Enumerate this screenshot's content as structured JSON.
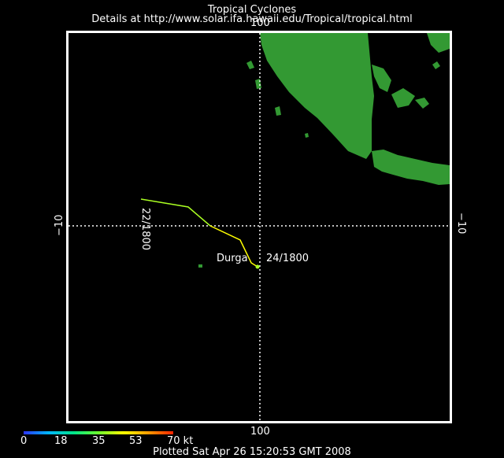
{
  "header": {
    "title": "Tropical Cyclones",
    "details": "Details at http://www.solar.ifa.hawaii.edu/Tropical/tropical.html"
  },
  "axes": {
    "top_longitude_label": "100",
    "bottom_longitude_label": "100",
    "left_latitude_label": "−10",
    "right_latitude_label": "−10",
    "grid": "dotted"
  },
  "storm": {
    "name": "Durga",
    "start_label": "22/1800",
    "end_label": "24/1800",
    "track_colors": [
      "#aaff22",
      "#ffff00"
    ]
  },
  "colors": {
    "land": "#339933",
    "ocean": "#000000",
    "frame": "#ffffff"
  },
  "legend": {
    "ticks": [
      "0",
      "18",
      "35",
      "53",
      "70 kt"
    ]
  },
  "footer": "Plotted Sat Apr 26 15:20:53 GMT 2008"
}
